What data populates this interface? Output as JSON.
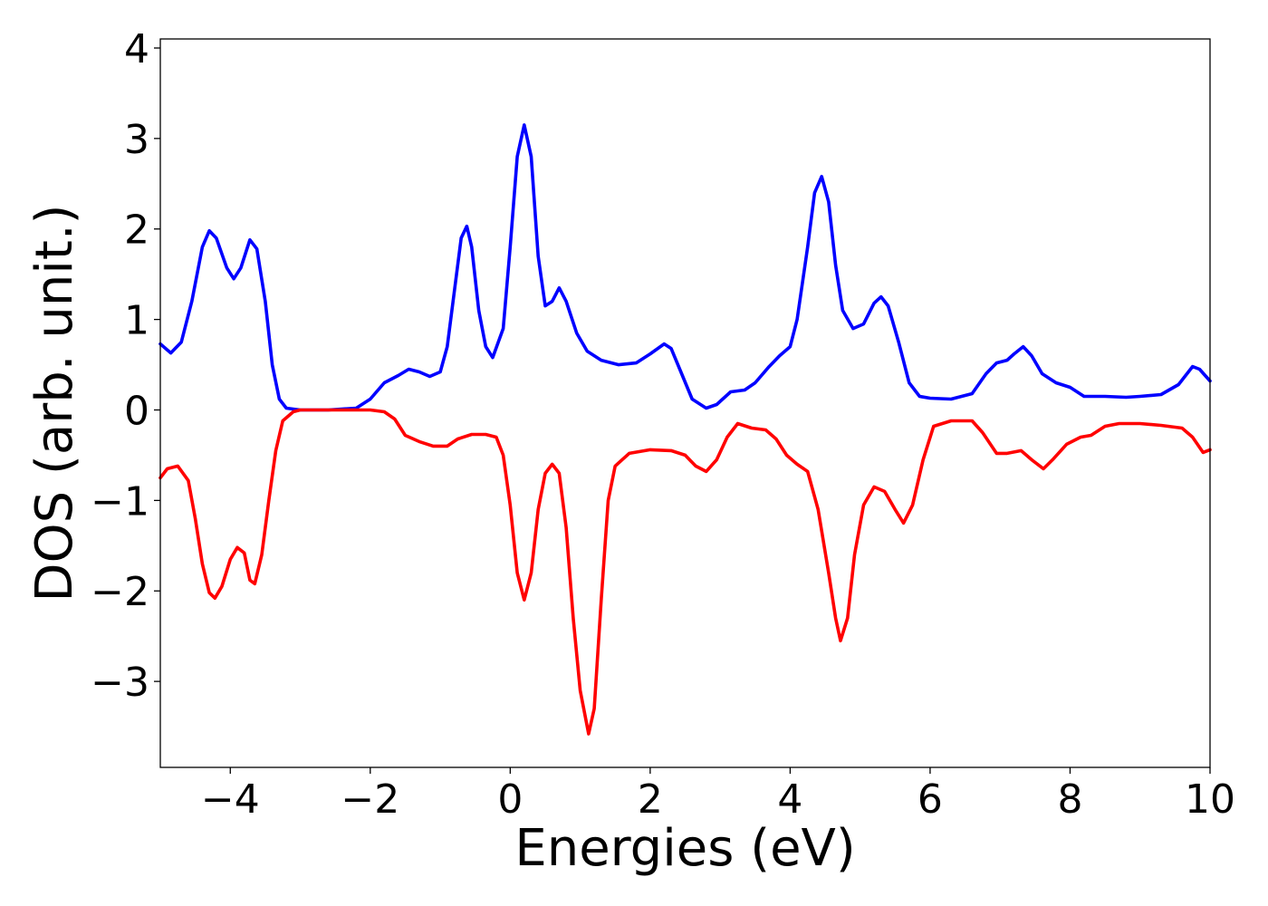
{
  "chart_data": {
    "type": "line",
    "title": "",
    "xlabel": "Energies (eV)",
    "ylabel": "DOS (arb. unit.)",
    "xlim": [
      -5,
      10
    ],
    "ylim": [
      -3.95,
      4.1
    ],
    "xticks": [
      -4,
      -2,
      0,
      2,
      4,
      6,
      8,
      10
    ],
    "xtick_labels": [
      "−4",
      "−2",
      "0",
      "2",
      "4",
      "6",
      "8",
      "10"
    ],
    "yticks": [
      -3,
      -2,
      -1,
      0,
      1,
      2,
      3,
      4
    ],
    "ytick_labels": [
      "−3",
      "−2",
      "−1",
      "0",
      "1",
      "2",
      "3",
      "4"
    ],
    "grid": false,
    "legend": false,
    "series": [
      {
        "color": "#0000ff",
        "points": [
          [
            -5.0,
            0.73
          ],
          [
            -4.85,
            0.63
          ],
          [
            -4.7,
            0.75
          ],
          [
            -4.55,
            1.2
          ],
          [
            -4.4,
            1.8
          ],
          [
            -4.3,
            1.98
          ],
          [
            -4.2,
            1.9
          ],
          [
            -4.05,
            1.57
          ],
          [
            -3.95,
            1.45
          ],
          [
            -3.85,
            1.57
          ],
          [
            -3.72,
            1.88
          ],
          [
            -3.62,
            1.78
          ],
          [
            -3.5,
            1.2
          ],
          [
            -3.4,
            0.5
          ],
          [
            -3.3,
            0.12
          ],
          [
            -3.2,
            0.02
          ],
          [
            -3.0,
            0.0
          ],
          [
            -2.6,
            0.0
          ],
          [
            -2.2,
            0.02
          ],
          [
            -2.0,
            0.12
          ],
          [
            -1.8,
            0.3
          ],
          [
            -1.6,
            0.38
          ],
          [
            -1.45,
            0.45
          ],
          [
            -1.3,
            0.42
          ],
          [
            -1.15,
            0.37
          ],
          [
            -1.0,
            0.42
          ],
          [
            -0.9,
            0.7
          ],
          [
            -0.8,
            1.3
          ],
          [
            -0.7,
            1.9
          ],
          [
            -0.62,
            2.03
          ],
          [
            -0.55,
            1.8
          ],
          [
            -0.45,
            1.1
          ],
          [
            -0.35,
            0.7
          ],
          [
            -0.25,
            0.58
          ],
          [
            -0.1,
            0.9
          ],
          [
            0.0,
            1.8
          ],
          [
            0.1,
            2.8
          ],
          [
            0.2,
            3.15
          ],
          [
            0.3,
            2.8
          ],
          [
            0.4,
            1.7
          ],
          [
            0.5,
            1.15
          ],
          [
            0.6,
            1.2
          ],
          [
            0.7,
            1.35
          ],
          [
            0.8,
            1.2
          ],
          [
            0.95,
            0.85
          ],
          [
            1.1,
            0.65
          ],
          [
            1.3,
            0.55
          ],
          [
            1.55,
            0.5
          ],
          [
            1.8,
            0.52
          ],
          [
            2.0,
            0.62
          ],
          [
            2.2,
            0.73
          ],
          [
            2.3,
            0.68
          ],
          [
            2.45,
            0.4
          ],
          [
            2.6,
            0.12
          ],
          [
            2.8,
            0.02
          ],
          [
            2.95,
            0.06
          ],
          [
            3.15,
            0.2
          ],
          [
            3.35,
            0.22
          ],
          [
            3.5,
            0.3
          ],
          [
            3.7,
            0.48
          ],
          [
            3.85,
            0.6
          ],
          [
            4.0,
            0.7
          ],
          [
            4.1,
            1.0
          ],
          [
            4.25,
            1.8
          ],
          [
            4.35,
            2.4
          ],
          [
            4.45,
            2.58
          ],
          [
            4.55,
            2.3
          ],
          [
            4.65,
            1.6
          ],
          [
            4.75,
            1.1
          ],
          [
            4.9,
            0.9
          ],
          [
            5.05,
            0.95
          ],
          [
            5.2,
            1.18
          ],
          [
            5.3,
            1.25
          ],
          [
            5.4,
            1.15
          ],
          [
            5.55,
            0.75
          ],
          [
            5.7,
            0.3
          ],
          [
            5.85,
            0.15
          ],
          [
            6.0,
            0.13
          ],
          [
            6.3,
            0.12
          ],
          [
            6.6,
            0.18
          ],
          [
            6.8,
            0.4
          ],
          [
            6.95,
            0.52
          ],
          [
            7.1,
            0.55
          ],
          [
            7.2,
            0.62
          ],
          [
            7.33,
            0.7
          ],
          [
            7.45,
            0.6
          ],
          [
            7.6,
            0.4
          ],
          [
            7.8,
            0.3
          ],
          [
            8.0,
            0.25
          ],
          [
            8.2,
            0.15
          ],
          [
            8.5,
            0.15
          ],
          [
            8.8,
            0.14
          ],
          [
            9.0,
            0.15
          ],
          [
            9.3,
            0.17
          ],
          [
            9.55,
            0.28
          ],
          [
            9.75,
            0.48
          ],
          [
            9.85,
            0.45
          ],
          [
            10.0,
            0.32
          ]
        ]
      },
      {
        "color": "#ff0000",
        "points": [
          [
            -5.0,
            -0.75
          ],
          [
            -4.9,
            -0.65
          ],
          [
            -4.75,
            -0.62
          ],
          [
            -4.6,
            -0.78
          ],
          [
            -4.5,
            -1.2
          ],
          [
            -4.4,
            -1.7
          ],
          [
            -4.3,
            -2.02
          ],
          [
            -4.22,
            -2.08
          ],
          [
            -4.12,
            -1.95
          ],
          [
            -4.0,
            -1.65
          ],
          [
            -3.9,
            -1.52
          ],
          [
            -3.8,
            -1.58
          ],
          [
            -3.72,
            -1.88
          ],
          [
            -3.65,
            -1.92
          ],
          [
            -3.55,
            -1.6
          ],
          [
            -3.45,
            -1.0
          ],
          [
            -3.35,
            -0.45
          ],
          [
            -3.25,
            -0.12
          ],
          [
            -3.1,
            -0.02
          ],
          [
            -3.0,
            0.0
          ],
          [
            -2.0,
            0.0
          ],
          [
            -1.8,
            -0.02
          ],
          [
            -1.65,
            -0.1
          ],
          [
            -1.5,
            -0.28
          ],
          [
            -1.3,
            -0.35
          ],
          [
            -1.1,
            -0.4
          ],
          [
            -0.9,
            -0.4
          ],
          [
            -0.75,
            -0.32
          ],
          [
            -0.55,
            -0.27
          ],
          [
            -0.35,
            -0.27
          ],
          [
            -0.2,
            -0.3
          ],
          [
            -0.1,
            -0.5
          ],
          [
            0.0,
            -1.05
          ],
          [
            0.1,
            -1.8
          ],
          [
            0.2,
            -2.1
          ],
          [
            0.3,
            -1.8
          ],
          [
            0.4,
            -1.1
          ],
          [
            0.5,
            -0.7
          ],
          [
            0.6,
            -0.6
          ],
          [
            0.7,
            -0.7
          ],
          [
            0.8,
            -1.3
          ],
          [
            0.9,
            -2.3
          ],
          [
            1.0,
            -3.1
          ],
          [
            1.12,
            -3.58
          ],
          [
            1.2,
            -3.3
          ],
          [
            1.3,
            -2.1
          ],
          [
            1.4,
            -1.0
          ],
          [
            1.5,
            -0.62
          ],
          [
            1.7,
            -0.48
          ],
          [
            2.0,
            -0.44
          ],
          [
            2.3,
            -0.45
          ],
          [
            2.5,
            -0.5
          ],
          [
            2.65,
            -0.62
          ],
          [
            2.8,
            -0.68
          ],
          [
            2.95,
            -0.55
          ],
          [
            3.1,
            -0.3
          ],
          [
            3.25,
            -0.15
          ],
          [
            3.45,
            -0.2
          ],
          [
            3.65,
            -0.22
          ],
          [
            3.8,
            -0.32
          ],
          [
            3.95,
            -0.5
          ],
          [
            4.1,
            -0.6
          ],
          [
            4.25,
            -0.68
          ],
          [
            4.4,
            -1.1
          ],
          [
            4.55,
            -1.8
          ],
          [
            4.65,
            -2.3
          ],
          [
            4.72,
            -2.55
          ],
          [
            4.82,
            -2.3
          ],
          [
            4.92,
            -1.6
          ],
          [
            5.05,
            -1.05
          ],
          [
            5.2,
            -0.85
          ],
          [
            5.35,
            -0.9
          ],
          [
            5.5,
            -1.1
          ],
          [
            5.62,
            -1.25
          ],
          [
            5.75,
            -1.05
          ],
          [
            5.9,
            -0.55
          ],
          [
            6.05,
            -0.18
          ],
          [
            6.3,
            -0.12
          ],
          [
            6.6,
            -0.12
          ],
          [
            6.75,
            -0.25
          ],
          [
            6.95,
            -0.48
          ],
          [
            7.1,
            -0.48
          ],
          [
            7.3,
            -0.45
          ],
          [
            7.45,
            -0.55
          ],
          [
            7.62,
            -0.65
          ],
          [
            7.75,
            -0.55
          ],
          [
            7.95,
            -0.38
          ],
          [
            8.15,
            -0.3
          ],
          [
            8.3,
            -0.28
          ],
          [
            8.5,
            -0.18
          ],
          [
            8.7,
            -0.15
          ],
          [
            9.0,
            -0.15
          ],
          [
            9.3,
            -0.17
          ],
          [
            9.6,
            -0.2
          ],
          [
            9.75,
            -0.3
          ],
          [
            9.9,
            -0.47
          ],
          [
            10.0,
            -0.44
          ]
        ]
      }
    ]
  }
}
